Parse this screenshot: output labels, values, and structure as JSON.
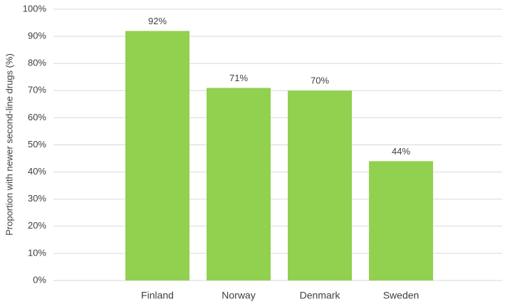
{
  "chart_data": {
    "type": "bar",
    "y_label": "Proportion with newer second-line drugs (%)",
    "categories": [
      "Finland",
      "Norway",
      "Denmark",
      "Sweden"
    ],
    "values": [
      92,
      71,
      70,
      44
    ],
    "value_labels": [
      "92%",
      "71%",
      "70%",
      "44%"
    ],
    "color": "#92d050",
    "ylim": [
      0,
      100
    ],
    "yticks": [
      {
        "value": 0,
        "label": "0%"
      },
      {
        "value": 10,
        "label": "10%"
      },
      {
        "value": 20,
        "label": "20%"
      },
      {
        "value": 30,
        "label": "30%"
      },
      {
        "value": 40,
        "label": "40%"
      },
      {
        "value": 50,
        "label": "50%"
      },
      {
        "value": 60,
        "label": "60%"
      },
      {
        "value": 70,
        "label": "70%"
      },
      {
        "value": 80,
        "label": "80%"
      },
      {
        "value": 90,
        "label": "90%"
      },
      {
        "value": 100,
        "label": "100%"
      }
    ],
    "grid": true
  }
}
